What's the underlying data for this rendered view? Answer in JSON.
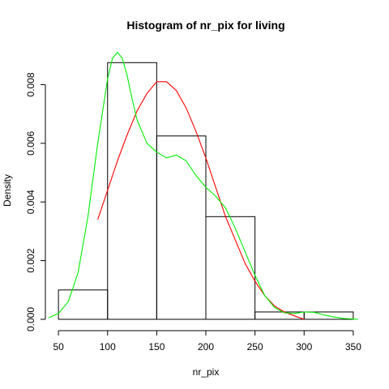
{
  "chart_data": {
    "type": "bar",
    "title": "Histogram of nr_pix for living",
    "xlabel": "nr_pix",
    "ylabel": "Density",
    "xlim": [
      40,
      360
    ],
    "ylim": [
      0,
      0.0092
    ],
    "grid": false,
    "x_ticks": [
      50,
      100,
      150,
      200,
      250,
      300,
      350
    ],
    "x_tick_labels": [
      "50",
      "100",
      "150",
      "200",
      "250",
      "300",
      "350"
    ],
    "y_ticks": [
      0,
      0.002,
      0.004,
      0.006,
      0.008
    ],
    "y_tick_labels": [
      "0.000",
      "0.002",
      "0.004",
      "0.006",
      "0.008"
    ],
    "bins": [
      {
        "from": 50,
        "to": 100,
        "density": 0.001
      },
      {
        "from": 100,
        "to": 150,
        "density": 0.00875
      },
      {
        "from": 150,
        "to": 200,
        "density": 0.00625
      },
      {
        "from": 200,
        "to": 250,
        "density": 0.0035
      },
      {
        "from": 250,
        "to": 300,
        "density": 0.00025
      },
      {
        "from": 300,
        "to": 350,
        "density": 0.00025
      }
    ],
    "series": [
      {
        "color": "#ff0000",
        "x": [
          90,
          100,
          110,
          120,
          130,
          140,
          150,
          155,
          160,
          170,
          180,
          190,
          200,
          210,
          220,
          230,
          240,
          250,
          260,
          270,
          280,
          290,
          300
        ],
        "y": [
          0.0034,
          0.0044,
          0.0054,
          0.0063,
          0.0071,
          0.0077,
          0.0081,
          0.0081,
          0.0081,
          0.0078,
          0.0072,
          0.0064,
          0.0055,
          0.0045,
          0.0035,
          0.0027,
          0.0019,
          0.0013,
          0.0008,
          0.00045,
          0.00025,
          0.00012,
          0.0
        ]
      },
      {
        "color": "#00ee00",
        "x": [
          40,
          50,
          60,
          70,
          80,
          90,
          100,
          105,
          110,
          115,
          120,
          125,
          130,
          140,
          150,
          160,
          170,
          180,
          190,
          200,
          210,
          220,
          230,
          240,
          250,
          260,
          270,
          280,
          290,
          300,
          310,
          320,
          330,
          340,
          350,
          355
        ],
        "y": [
          5e-05,
          0.0002,
          0.0006,
          0.0016,
          0.0035,
          0.006,
          0.0082,
          0.0089,
          0.0091,
          0.0089,
          0.0083,
          0.0075,
          0.0068,
          0.006,
          0.0057,
          0.0055,
          0.0056,
          0.0054,
          0.0049,
          0.0045,
          0.0042,
          0.0038,
          0.0031,
          0.0023,
          0.0015,
          0.0008,
          0.0004,
          0.00022,
          0.0002,
          0.00025,
          0.00024,
          0.00015,
          8e-05,
          3e-05,
          1e-05,
          0.0
        ]
      }
    ]
  }
}
